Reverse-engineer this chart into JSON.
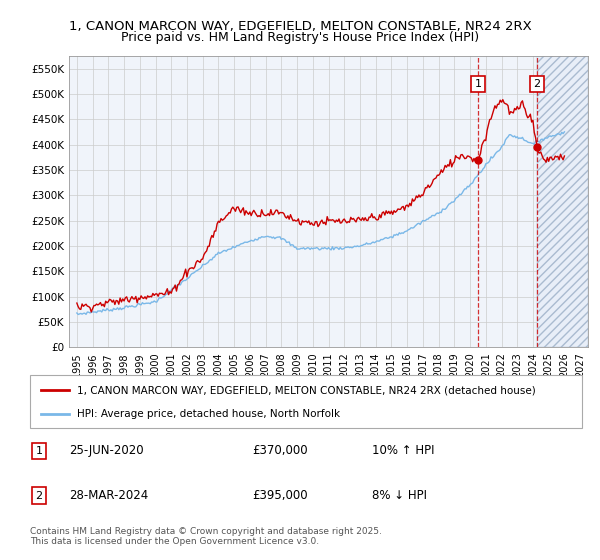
{
  "title_line1": "1, CANON MARCON WAY, EDGEFIELD, MELTON CONSTABLE, NR24 2RX",
  "title_line2": "Price paid vs. HM Land Registry's House Price Index (HPI)",
  "ylim": [
    0,
    575000
  ],
  "xlim_start": 1994.5,
  "xlim_end": 2027.5,
  "yticks": [
    0,
    50000,
    100000,
    150000,
    200000,
    250000,
    300000,
    350000,
    400000,
    450000,
    500000,
    550000
  ],
  "ytick_labels": [
    "£0",
    "£50K",
    "£100K",
    "£150K",
    "£200K",
    "£250K",
    "£300K",
    "£350K",
    "£400K",
    "£450K",
    "£500K",
    "£550K"
  ],
  "xticks": [
    1995,
    1996,
    1997,
    1998,
    1999,
    2000,
    2001,
    2002,
    2003,
    2004,
    2005,
    2006,
    2007,
    2008,
    2009,
    2010,
    2011,
    2012,
    2013,
    2014,
    2015,
    2016,
    2017,
    2018,
    2019,
    2020,
    2021,
    2022,
    2023,
    2024,
    2025,
    2026,
    2027
  ],
  "hpi_color": "#7ab8e8",
  "price_color": "#cc0000",
  "marker1_x": 2020.5,
  "marker1_y": 370000,
  "marker2_x": 2024.25,
  "marker2_y": 395000,
  "marker1_label": "25-JUN-2020",
  "marker1_value": "£370,000",
  "marker1_hpi": "10% ↑ HPI",
  "marker2_label": "28-MAR-2024",
  "marker2_value": "£395,000",
  "marker2_hpi": "8% ↓ HPI",
  "legend_line1": "1, CANON MARCON WAY, EDGEFIELD, MELTON CONSTABLE, NR24 2RX (detached house)",
  "legend_line2": "HPI: Average price, detached house, North Norfolk",
  "footnote": "Contains HM Land Registry data © Crown copyright and database right 2025.\nThis data is licensed under the Open Government Licence v3.0.",
  "bg_color": "#f0f4fa",
  "grid_color": "#cccccc"
}
